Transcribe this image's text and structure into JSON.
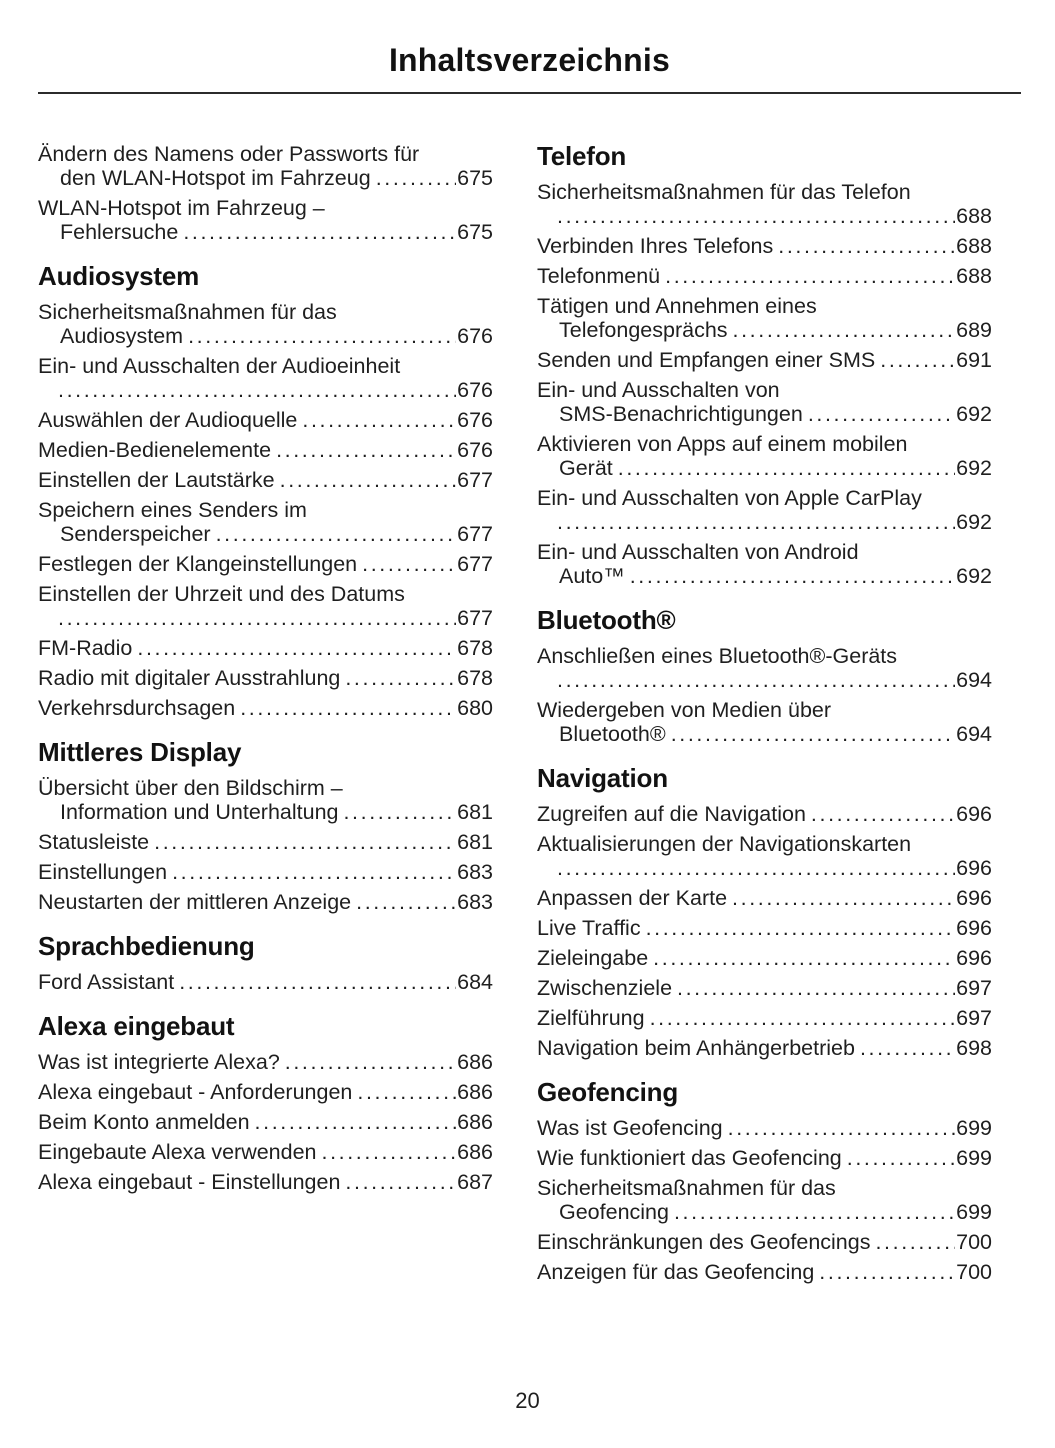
{
  "page": {
    "title": "Inhaltsverzeichnis",
    "page_number": "20"
  },
  "columns": [
    {
      "blocks": [
        {
          "heading": null,
          "entries": [
            {
              "lines": [
                "Ändern des Namens oder Passworts für",
                "den WLAN-Hotspot im Fahrzeug"
              ],
              "page": "675"
            },
            {
              "lines": [
                "WLAN-Hotspot im Fahrzeug –",
                "Fehlersuche"
              ],
              "page": "675"
            }
          ]
        },
        {
          "heading": "Audiosystem",
          "entries": [
            {
              "lines": [
                "Sicherheitsmaßnahmen für das",
                "Audiosystem"
              ],
              "page": "676"
            },
            {
              "lines": [
                "Ein- und Ausschalten der Audioeinheit",
                ""
              ],
              "page": "676"
            },
            {
              "lines": [
                "Auswählen der Audioquelle"
              ],
              "page": "676"
            },
            {
              "lines": [
                "Medien-Bedienelemente"
              ],
              "page": "676"
            },
            {
              "lines": [
                "Einstellen der Lautstärke"
              ],
              "page": "677"
            },
            {
              "lines": [
                "Speichern eines Senders im",
                "Senderspeicher"
              ],
              "page": "677"
            },
            {
              "lines": [
                "Festlegen der Klangeinstellungen"
              ],
              "page": "677"
            },
            {
              "lines": [
                "Einstellen der Uhrzeit und des Datums",
                ""
              ],
              "page": "677"
            },
            {
              "lines": [
                "FM-Radio"
              ],
              "page": "678"
            },
            {
              "lines": [
                "Radio mit digitaler Ausstrahlung"
              ],
              "page": "678"
            },
            {
              "lines": [
                "Verkehrsdurchsagen"
              ],
              "page": "680"
            }
          ]
        },
        {
          "heading": "Mittleres Display",
          "entries": [
            {
              "lines": [
                "Übersicht über den Bildschirm –",
                "Information und Unterhaltung"
              ],
              "page": "681"
            },
            {
              "lines": [
                "Statusleiste"
              ],
              "page": "681"
            },
            {
              "lines": [
                "Einstellungen"
              ],
              "page": "683"
            },
            {
              "lines": [
                "Neustarten der mittleren Anzeige"
              ],
              "page": "683"
            }
          ]
        },
        {
          "heading": "Sprachbedienung",
          "entries": [
            {
              "lines": [
                "Ford Assistant"
              ],
              "page": "684"
            }
          ]
        },
        {
          "heading": "Alexa eingebaut",
          "entries": [
            {
              "lines": [
                "Was ist integrierte Alexa?"
              ],
              "page": "686"
            },
            {
              "lines": [
                "Alexa eingebaut - Anforderungen"
              ],
              "page": "686"
            },
            {
              "lines": [
                "Beim Konto anmelden"
              ],
              "page": "686"
            },
            {
              "lines": [
                "Eingebaute Alexa verwenden"
              ],
              "page": "686"
            },
            {
              "lines": [
                "Alexa eingebaut - Einstellungen"
              ],
              "page": "687"
            }
          ]
        }
      ]
    },
    {
      "blocks": [
        {
          "heading": "Telefon",
          "entries": [
            {
              "lines": [
                "Sicherheitsmaßnahmen für das Telefon",
                ""
              ],
              "page": "688"
            },
            {
              "lines": [
                "Verbinden Ihres Telefons"
              ],
              "page": "688"
            },
            {
              "lines": [
                "Telefonmenü"
              ],
              "page": "688"
            },
            {
              "lines": [
                "Tätigen und Annehmen eines",
                "Telefongesprächs"
              ],
              "page": "689"
            },
            {
              "lines": [
                "Senden und Empfangen einer SMS"
              ],
              "page": "691"
            },
            {
              "lines": [
                "Ein- und Ausschalten von",
                "SMS-Benachrichtigungen"
              ],
              "page": "692"
            },
            {
              "lines": [
                "Aktivieren von Apps auf einem mobilen",
                "Gerät"
              ],
              "page": "692"
            },
            {
              "lines": [
                "Ein- und Ausschalten von Apple CarPlay",
                ""
              ],
              "page": "692"
            },
            {
              "lines": [
                "Ein- und Ausschalten von Android",
                "Auto™"
              ],
              "page": "692"
            }
          ]
        },
        {
          "heading": "Bluetooth®",
          "entries": [
            {
              "lines": [
                "Anschließen eines Bluetooth®-Geräts",
                ""
              ],
              "page": "694"
            },
            {
              "lines": [
                "Wiedergeben von Medien über",
                "Bluetooth®"
              ],
              "page": "694"
            }
          ]
        },
        {
          "heading": "Navigation",
          "entries": [
            {
              "lines": [
                "Zugreifen auf die Navigation"
              ],
              "page": "696"
            },
            {
              "lines": [
                "Aktualisierungen der Navigationskarten",
                ""
              ],
              "page": "696"
            },
            {
              "lines": [
                "Anpassen der Karte"
              ],
              "page": "696"
            },
            {
              "lines": [
                "Live Traffic"
              ],
              "page": "696"
            },
            {
              "lines": [
                "Zieleingabe"
              ],
              "page": "696"
            },
            {
              "lines": [
                "Zwischenziele"
              ],
              "page": "697"
            },
            {
              "lines": [
                "Zielführung"
              ],
              "page": "697"
            },
            {
              "lines": [
                "Navigation beim Anhängerbetrieb"
              ],
              "page": "698"
            }
          ]
        },
        {
          "heading": "Geofencing",
          "entries": [
            {
              "lines": [
                "Was ist Geofencing"
              ],
              "page": "699"
            },
            {
              "lines": [
                "Wie funktioniert das Geofencing"
              ],
              "page": "699"
            },
            {
              "lines": [
                "Sicherheitsmaßnahmen für das",
                "Geofencing"
              ],
              "page": "699"
            },
            {
              "lines": [
                "Einschränkungen des Geofencings"
              ],
              "page": "700"
            },
            {
              "lines": [
                "Anzeigen für das Geofencing"
              ],
              "page": "700"
            }
          ]
        }
      ]
    }
  ]
}
